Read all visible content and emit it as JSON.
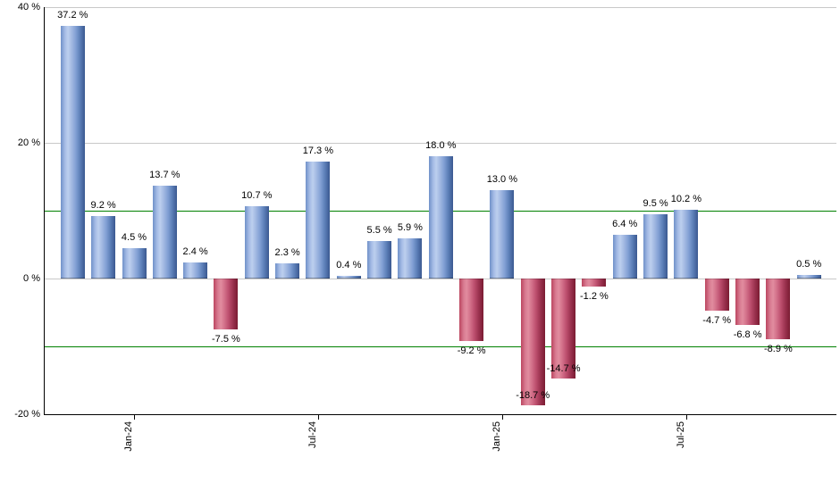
{
  "chart_data": {
    "type": "bar",
    "title": "",
    "xlabel": "",
    "ylabel": "",
    "values": [
      37.2,
      9.2,
      4.5,
      13.7,
      2.4,
      -7.5,
      10.7,
      2.3,
      17.3,
      0.4,
      5.5,
      5.9,
      18.0,
      -9.2,
      13.0,
      -18.7,
      -14.7,
      -1.2,
      6.4,
      9.5,
      10.2,
      -4.7,
      -6.8,
      -8.9,
      0.5
    ],
    "value_label_suffix": " %",
    "value_label_decimals": 1,
    "xticks": [
      {
        "label": "Jan-24",
        "bar_index": 2
      },
      {
        "label": "Jul-24",
        "bar_index": 8
      },
      {
        "label": "Jan-25",
        "bar_index": 14
      },
      {
        "label": "Jul-25",
        "bar_index": 20
      }
    ],
    "yticks": [
      {
        "label": "40 %",
        "value": 40
      },
      {
        "label": "20 %",
        "value": 20
      },
      {
        "label": "0 %",
        "value": 0
      },
      {
        "label": "-20 %",
        "value": -20
      }
    ],
    "gridlines": [
      40,
      20,
      0
    ],
    "reference_lines": [
      {
        "value": 10,
        "color": "#008000"
      },
      {
        "value": -10,
        "color": "#008000"
      }
    ],
    "ylim": [
      -20,
      40
    ],
    "legend": null,
    "grid": true,
    "colors": {
      "positive_bar": "#7091c9",
      "negative_bar": "#bc4660",
      "gridline": "#c8c8c8",
      "reference_line": "#008000",
      "axis": "#000000",
      "label_text": "#000000",
      "background": "#ffffff"
    }
  }
}
